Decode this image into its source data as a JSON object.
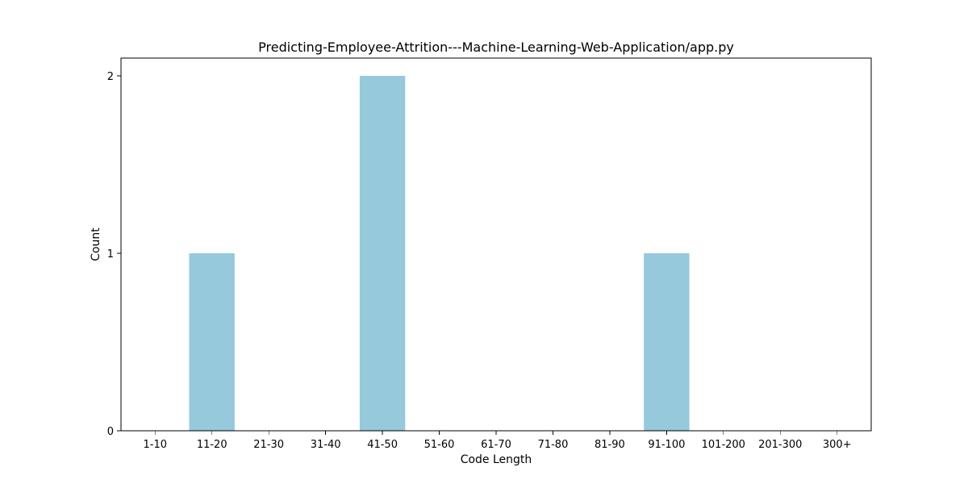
{
  "chart_data": {
    "type": "bar",
    "title": "Predicting-Employee-Attrition---Machine-Learning-Web-Application/app.py",
    "xlabel": "Code Length",
    "ylabel": "Count",
    "categories": [
      "1-10",
      "11-20",
      "21-30",
      "31-40",
      "41-50",
      "51-60",
      "61-70",
      "71-80",
      "81-90",
      "91-100",
      "101-200",
      "201-300",
      "300+"
    ],
    "values": [
      0,
      1,
      0,
      0,
      2,
      0,
      0,
      0,
      0,
      1,
      0,
      0,
      0
    ],
    "yticks": [
      0,
      1,
      2
    ],
    "ylim": [
      0,
      2.1
    ],
    "bar_color": "#96c9dc",
    "grid": false,
    "legend": "none"
  }
}
